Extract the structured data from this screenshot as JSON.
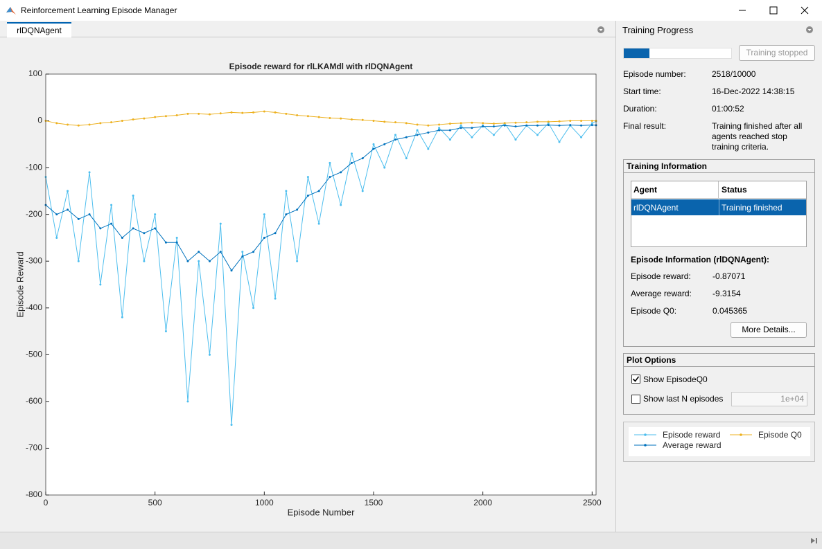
{
  "window": {
    "title": "Reinforcement Learning Episode Manager"
  },
  "tab": {
    "label": "rlDQNAgent"
  },
  "progress": {
    "title": "Training Progress",
    "button": "Training stopped",
    "fields": [
      {
        "label": "Episode number:",
        "value": "2518/10000"
      },
      {
        "label": "Start time:",
        "value": "16-Dec-2022 14:38:15"
      },
      {
        "label": "Duration:",
        "value": "01:00:52"
      },
      {
        "label": "Final result:",
        "value": "Training finished after all agents reached stop training criteria."
      }
    ]
  },
  "training_info": {
    "title": "Training Information",
    "columns": [
      "Agent",
      "Status"
    ],
    "rows": [
      [
        "rlDQNAgent",
        "Training finished"
      ]
    ],
    "episode_info_title": "Episode Information (rlDQNAgent):",
    "fields": [
      {
        "label": "Episode reward:",
        "value": "-0.87071"
      },
      {
        "label": "Average reward:",
        "value": "-9.3154"
      },
      {
        "label": "Episode Q0:",
        "value": "0.045365"
      }
    ],
    "button": "More Details..."
  },
  "plot_options": {
    "title": "Plot Options",
    "show_q0": "Show EpisodeQ0",
    "show_q0_checked": true,
    "show_last": "Show last N episodes",
    "show_last_checked": false,
    "n_value": "1e+04"
  },
  "chart_data": {
    "type": "line",
    "title": "Episode reward for rlLKAMdl with rlDQNAgent",
    "xlabel": "Episode Number",
    "ylabel": "Episode Reward",
    "x": [
      0,
      50,
      100,
      150,
      200,
      250,
      300,
      350,
      400,
      450,
      500,
      550,
      600,
      650,
      700,
      750,
      800,
      850,
      900,
      950,
      1000,
      1050,
      1100,
      1150,
      1200,
      1250,
      1300,
      1350,
      1400,
      1450,
      1500,
      1550,
      1600,
      1650,
      1700,
      1750,
      1800,
      1850,
      1900,
      1950,
      2000,
      2050,
      2100,
      2150,
      2200,
      2250,
      2300,
      2350,
      2400,
      2450,
      2500,
      2518
    ],
    "series": [
      {
        "name": "Episode reward",
        "color": "#4DBEEE",
        "values": [
          -120,
          -250,
          -150,
          -300,
          -110,
          -350,
          -180,
          -420,
          -160,
          -300,
          -200,
          -450,
          -250,
          -600,
          -300,
          -500,
          -220,
          -650,
          -280,
          -400,
          -200,
          -380,
          -150,
          -300,
          -120,
          -220,
          -90,
          -180,
          -70,
          -150,
          -50,
          -100,
          -30,
          -80,
          -20,
          -60,
          -15,
          -40,
          -10,
          -35,
          -10,
          -30,
          -5,
          -40,
          -10,
          -30,
          -5,
          -45,
          -10,
          -35,
          -5,
          -0.87071
        ]
      },
      {
        "name": "Average reward",
        "color": "#0072BD",
        "values": [
          -180,
          -200,
          -190,
          -210,
          -200,
          -230,
          -220,
          -250,
          -230,
          -240,
          -230,
          -260,
          -260,
          -300,
          -280,
          -300,
          -280,
          -320,
          -290,
          -280,
          -250,
          -240,
          -200,
          -190,
          -160,
          -150,
          -120,
          -110,
          -90,
          -80,
          -60,
          -50,
          -40,
          -35,
          -30,
          -25,
          -20,
          -20,
          -15,
          -15,
          -12,
          -12,
          -10,
          -12,
          -10,
          -10,
          -9,
          -10,
          -9,
          -10,
          -9,
          -9.3154
        ]
      },
      {
        "name": "Episode Q0",
        "color": "#EDB120",
        "values": [
          0,
          -5,
          -8,
          -10,
          -8,
          -5,
          -3,
          0,
          3,
          5,
          8,
          10,
          12,
          15,
          15,
          14,
          16,
          18,
          17,
          18,
          20,
          18,
          15,
          12,
          10,
          8,
          6,
          5,
          3,
          2,
          0,
          -2,
          -3,
          -5,
          -8,
          -10,
          -8,
          -6,
          -5,
          -4,
          -5,
          -6,
          -5,
          -4,
          -3,
          -2,
          -2,
          -1,
          0,
          0,
          0,
          0.045365
        ]
      }
    ],
    "xlim": [
      0,
      2518
    ],
    "ylim": [
      -800,
      100
    ],
    "xticks": [
      0,
      500,
      1000,
      1500,
      2000,
      2500
    ],
    "yticks": [
      -800,
      -700,
      -600,
      -500,
      -400,
      -300,
      -200,
      -100,
      0,
      100
    ],
    "grid": false
  }
}
